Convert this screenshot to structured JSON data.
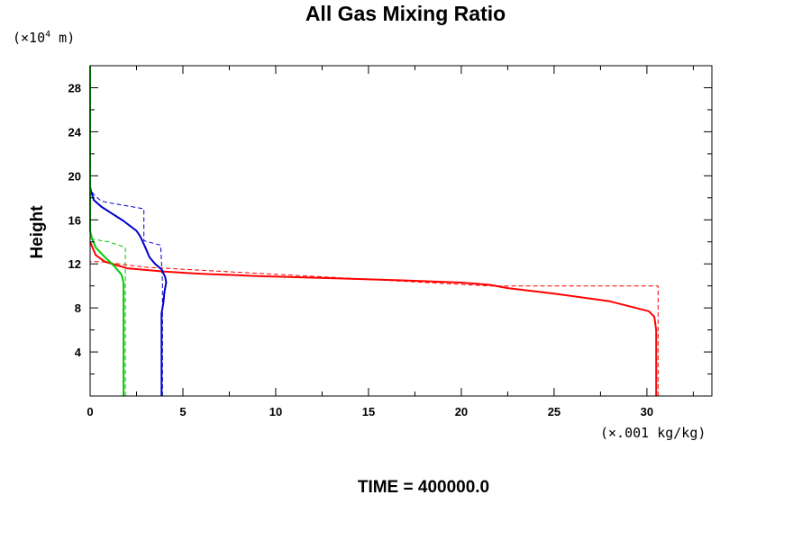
{
  "chart_data": {
    "type": "line",
    "title": "All Gas Mixing Ratio",
    "ylabel": "Height",
    "y_unit_prefix": "(×10",
    "y_unit_exp": "4",
    "y_unit_suffix": " m)",
    "x_unit": "(×.001 kg/kg)",
    "footer": "TIME = 400000.0",
    "xlim": [
      0,
      33.5
    ],
    "ylim": [
      0,
      30
    ],
    "x_ticks": [
      0,
      5,
      10,
      15,
      20,
      25,
      30
    ],
    "x_tick_labels": [
      "0",
      "5",
      "10",
      "15",
      "20",
      "25",
      "30"
    ],
    "y_ticks": [
      4,
      8,
      12,
      16,
      20,
      24,
      28
    ],
    "y_tick_labels": [
      "4",
      "8",
      "12",
      "16",
      "20",
      "24",
      "28"
    ],
    "grid": false,
    "colors": {
      "red": "#ff0000",
      "blue": "#0000cc",
      "green": "#00cc00"
    },
    "series": [
      {
        "color": "#ff0000",
        "dash": true,
        "points": [
          [
            30.6,
            0
          ],
          [
            30.6,
            10.0
          ],
          [
            21.5,
            10.0
          ],
          [
            3.0,
            11.7
          ],
          [
            0.6,
            12.2
          ],
          [
            0,
            12.2
          ]
        ]
      },
      {
        "color": "#ff0000",
        "dash": false,
        "points": [
          [
            30.5,
            0
          ],
          [
            30.5,
            6.0
          ],
          [
            30.4,
            7.2
          ],
          [
            30.1,
            7.7
          ],
          [
            28.0,
            8.6
          ],
          [
            25.0,
            9.3
          ],
          [
            22.5,
            9.8
          ],
          [
            21.5,
            10.1
          ],
          [
            20.0,
            10.3
          ],
          [
            17.0,
            10.5
          ],
          [
            13.0,
            10.7
          ],
          [
            9.0,
            10.9
          ],
          [
            6.0,
            11.1
          ],
          [
            4.0,
            11.3
          ],
          [
            2.0,
            11.6
          ],
          [
            0.8,
            12.2
          ],
          [
            0.3,
            12.8
          ],
          [
            0.15,
            13.4
          ],
          [
            0,
            14.0
          ]
        ]
      },
      {
        "color": "#0000cc",
        "dash": true,
        "points": [
          [
            3.9,
            0
          ],
          [
            3.9,
            9.2
          ],
          [
            3.9,
            10.4
          ],
          [
            3.8,
            13.7
          ],
          [
            3.1,
            14.0
          ],
          [
            2.9,
            14.1
          ],
          [
            2.9,
            17.0
          ],
          [
            1.2,
            17.5
          ],
          [
            0.6,
            17.7
          ],
          [
            0.2,
            18.3
          ],
          [
            0,
            18.8
          ]
        ]
      },
      {
        "color": "#0000cc",
        "dash": false,
        "points": [
          [
            3.85,
            0
          ],
          [
            3.85,
            7.5
          ],
          [
            3.95,
            8.5
          ],
          [
            4.0,
            9.4
          ],
          [
            4.1,
            10.3
          ],
          [
            4.05,
            10.8
          ],
          [
            3.85,
            11.5
          ],
          [
            3.5,
            12.0
          ],
          [
            3.2,
            12.6
          ],
          [
            3.0,
            13.4
          ],
          [
            2.7,
            14.5
          ],
          [
            2.5,
            15.0
          ],
          [
            1.8,
            15.9
          ],
          [
            0.6,
            17.2
          ],
          [
            0.2,
            17.8
          ],
          [
            0.05,
            18.6
          ],
          [
            0,
            19.0
          ]
        ]
      },
      {
        "color": "#00cc00",
        "dash": true,
        "points": [
          [
            1.9,
            0
          ],
          [
            1.9,
            13.5
          ],
          [
            1.0,
            14.0
          ],
          [
            0.3,
            14.2
          ],
          [
            0,
            14.3
          ]
        ]
      },
      {
        "color": "#00cc00",
        "dash": false,
        "points": [
          [
            0,
            30
          ],
          [
            0,
            18.0
          ],
          [
            0,
            15.0
          ],
          [
            0.1,
            14.3
          ],
          [
            0.3,
            13.5
          ],
          [
            0.8,
            12.6
          ],
          [
            1.3,
            11.8
          ],
          [
            1.7,
            11.0
          ],
          [
            1.8,
            10.3
          ],
          [
            1.8,
            7.5
          ],
          [
            1.8,
            0
          ]
        ]
      }
    ]
  }
}
